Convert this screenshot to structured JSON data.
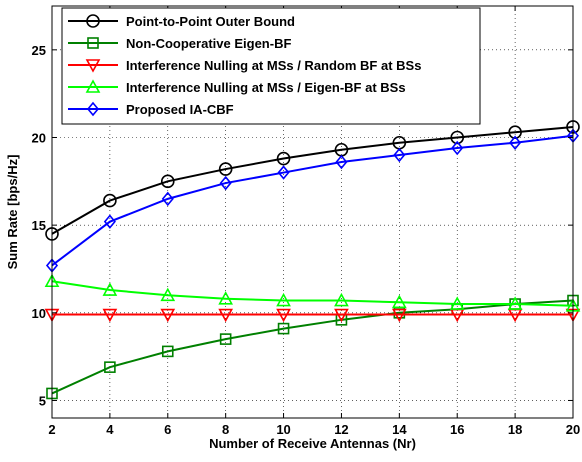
{
  "chart_data": {
    "type": "line",
    "xlabel": "Number of Receive Antennas (Nr)",
    "ylabel": "Sum Rate [bps/Hz]",
    "xlim": [
      2,
      20
    ],
    "ylim": [
      4,
      27.5
    ],
    "xticks": [
      2,
      4,
      6,
      8,
      10,
      12,
      14,
      16,
      18,
      20
    ],
    "yticks": [
      5,
      10,
      15,
      20,
      25
    ],
    "grid": true,
    "legend_position": "top-left",
    "series": [
      {
        "name": "Point-to-Point Outer Bound",
        "color": "#000000",
        "marker": "circle",
        "x": [
          2,
          4,
          6,
          8,
          10,
          12,
          14,
          16,
          18,
          20
        ],
        "y": [
          14.5,
          16.4,
          17.5,
          18.2,
          18.8,
          19.3,
          19.7,
          20.0,
          20.3,
          20.6
        ]
      },
      {
        "name": "Non-Cooperative Eigen-BF",
        "color": "#008000",
        "marker": "square",
        "x": [
          2,
          4,
          6,
          8,
          10,
          12,
          14,
          16,
          18,
          20
        ],
        "y": [
          5.4,
          6.9,
          7.8,
          8.5,
          9.1,
          9.6,
          10.0,
          10.2,
          10.5,
          10.7
        ]
      },
      {
        "name": "Interference Nulling at MSs / Random BF at BSs",
        "color": "#ff0000",
        "marker": "triangle-down",
        "x": [
          2,
          4,
          6,
          8,
          10,
          12,
          14,
          16,
          18,
          20
        ],
        "y": [
          9.9,
          9.9,
          9.9,
          9.9,
          9.9,
          9.9,
          9.9,
          9.9,
          9.9,
          9.9
        ]
      },
      {
        "name": "Interference Nulling at MSs / Eigen-BF at BSs",
        "color": "#00ff00",
        "marker": "triangle-up",
        "x": [
          2,
          4,
          6,
          8,
          10,
          12,
          14,
          16,
          18,
          20
        ],
        "y": [
          11.8,
          11.3,
          11.0,
          10.8,
          10.7,
          10.7,
          10.6,
          10.5,
          10.5,
          10.4
        ]
      },
      {
        "name": "Proposed IA-CBF",
        "color": "#0000ff",
        "marker": "diamond",
        "x": [
          2,
          4,
          6,
          8,
          10,
          12,
          14,
          16,
          18,
          20
        ],
        "y": [
          12.7,
          15.2,
          16.5,
          17.4,
          18.0,
          18.6,
          19.0,
          19.4,
          19.7,
          20.1
        ]
      }
    ]
  }
}
